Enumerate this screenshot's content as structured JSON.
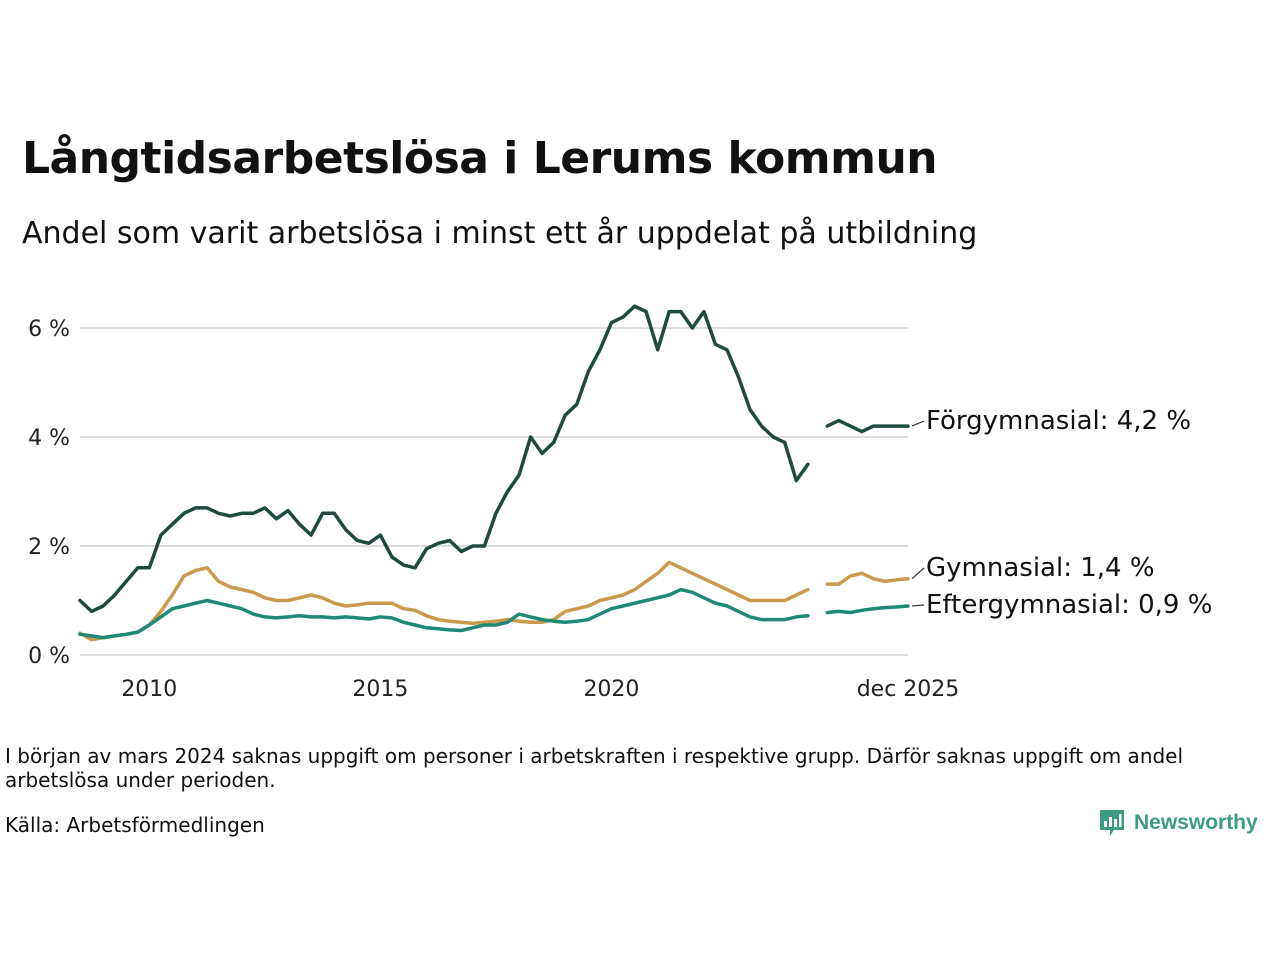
{
  "title": "Långtidsarbetslösa i Lerums kommun",
  "subtitle": "Andel som varit arbetslösa i minst ett år uppdelat på utbildning",
  "note": "I början av mars 2024 saknas uppgift om personer i arbetskraften i respektive grupp. Därför saknas uppgift om andel arbetslösa under perioden.",
  "source": "Källa: Arbetsförmedlingen",
  "logo": {
    "text": "Newsworthy",
    "color": "#3c9b83"
  },
  "chart_data": {
    "type": "line",
    "title": "Långtidsarbetslösa i Lerums kommun",
    "xlabel": "",
    "ylabel": "",
    "xlim": [
      2008.0,
      2025.917
    ],
    "ylim": [
      0,
      6.6
    ],
    "y_ticks": [
      {
        "value": 0,
        "label": "0 %"
      },
      {
        "value": 2,
        "label": "2 %"
      },
      {
        "value": 4,
        "label": "4 %"
      },
      {
        "value": 6,
        "label": "6 %"
      }
    ],
    "x_ticks": [
      {
        "value": 2009.5,
        "label": "2010"
      },
      {
        "value": 2014.5,
        "label": "2015"
      },
      {
        "value": 2019.5,
        "label": "2020"
      },
      {
        "value": 2025.917,
        "label": "dec 2025"
      }
    ],
    "gap": {
      "start": 2023.8,
      "end": 2024.1
    },
    "grid": true,
    "series": [
      {
        "name": "Förgymnasial",
        "label": "Förgymnasial: 4,2 %",
        "color": "#1f4a40",
        "x": [
          2008.0,
          2008.25,
          2008.5,
          2008.75,
          2009.0,
          2009.25,
          2009.5,
          2009.75,
          2010.0,
          2010.25,
          2010.5,
          2010.75,
          2011.0,
          2011.25,
          2011.5,
          2011.75,
          2012.0,
          2012.25,
          2012.5,
          2012.75,
          2013.0,
          2013.25,
          2013.5,
          2013.75,
          2014.0,
          2014.25,
          2014.5,
          2014.75,
          2015.0,
          2015.25,
          2015.5,
          2015.75,
          2016.0,
          2016.25,
          2016.5,
          2016.75,
          2017.0,
          2017.25,
          2017.5,
          2017.75,
          2018.0,
          2018.25,
          2018.5,
          2018.75,
          2019.0,
          2019.25,
          2019.5,
          2019.75,
          2020.0,
          2020.25,
          2020.5,
          2020.75,
          2021.0,
          2021.25,
          2021.5,
          2021.75,
          2022.0,
          2022.25,
          2022.5,
          2022.75,
          2023.0,
          2023.25,
          2023.5,
          2023.75,
          2024.17,
          2024.42,
          2024.67,
          2024.92,
          2025.17,
          2025.42,
          2025.67,
          2025.917
        ],
        "y": [
          1.0,
          0.8,
          0.9,
          1.1,
          1.35,
          1.6,
          1.6,
          2.2,
          2.4,
          2.6,
          2.7,
          2.7,
          2.6,
          2.55,
          2.6,
          2.6,
          2.7,
          2.5,
          2.65,
          2.4,
          2.2,
          2.6,
          2.6,
          2.3,
          2.1,
          2.05,
          2.2,
          1.8,
          1.65,
          1.6,
          1.95,
          2.05,
          2.1,
          1.9,
          2.0,
          2.0,
          2.6,
          3.0,
          3.3,
          4.0,
          3.7,
          3.9,
          4.4,
          4.6,
          5.2,
          5.6,
          6.1,
          6.2,
          6.4,
          6.3,
          5.6,
          6.3,
          6.3,
          6.0,
          6.3,
          5.7,
          5.6,
          5.1,
          4.5,
          4.2,
          4.0,
          3.9,
          3.2,
          3.5,
          4.2,
          4.3,
          4.2,
          4.1,
          4.2,
          4.2,
          4.2,
          4.2
        ]
      },
      {
        "name": "Gymnasial",
        "label": "Gymnasial: 1,4 %",
        "color": "#c99a4b",
        "x": [
          2008.0,
          2008.25,
          2008.5,
          2008.75,
          2009.0,
          2009.25,
          2009.5,
          2009.75,
          2010.0,
          2010.25,
          2010.5,
          2010.75,
          2011.0,
          2011.25,
          2011.5,
          2011.75,
          2012.0,
          2012.25,
          2012.5,
          2012.75,
          2013.0,
          2013.25,
          2013.5,
          2013.75,
          2014.0,
          2014.25,
          2014.5,
          2014.75,
          2015.0,
          2015.25,
          2015.5,
          2015.75,
          2016.0,
          2016.25,
          2016.5,
          2016.75,
          2017.0,
          2017.25,
          2017.5,
          2017.75,
          2018.0,
          2018.25,
          2018.5,
          2018.75,
          2019.0,
          2019.25,
          2019.5,
          2019.75,
          2020.0,
          2020.25,
          2020.5,
          2020.75,
          2021.0,
          2021.25,
          2021.5,
          2021.75,
          2022.0,
          2022.25,
          2022.5,
          2022.75,
          2023.0,
          2023.25,
          2023.5,
          2023.75,
          2024.17,
          2024.42,
          2024.67,
          2024.92,
          2025.17,
          2025.42,
          2025.67,
          2025.917
        ],
        "y": [
          0.4,
          0.28,
          0.32,
          0.35,
          0.38,
          0.42,
          0.55,
          0.8,
          1.1,
          1.45,
          1.55,
          1.6,
          1.35,
          1.25,
          1.2,
          1.15,
          1.05,
          1.0,
          1.0,
          1.05,
          1.1,
          1.05,
          0.95,
          0.9,
          0.92,
          0.95,
          0.95,
          0.95,
          0.85,
          0.82,
          0.72,
          0.65,
          0.62,
          0.6,
          0.58,
          0.6,
          0.62,
          0.65,
          0.62,
          0.6,
          0.6,
          0.65,
          0.8,
          0.85,
          0.9,
          1.0,
          1.05,
          1.1,
          1.2,
          1.35,
          1.5,
          1.7,
          1.6,
          1.5,
          1.4,
          1.3,
          1.2,
          1.1,
          1.0,
          1.0,
          1.0,
          1.0,
          1.1,
          1.2,
          1.3,
          1.3,
          1.45,
          1.5,
          1.4,
          1.35,
          1.38,
          1.4
        ]
      },
      {
        "name": "Eftergymnasial",
        "label": "Eftergymnasial: 0,9 %",
        "color": "#1e8a76",
        "x": [
          2008.0,
          2008.25,
          2008.5,
          2008.75,
          2009.0,
          2009.25,
          2009.5,
          2009.75,
          2010.0,
          2010.25,
          2010.5,
          2010.75,
          2011.0,
          2011.25,
          2011.5,
          2011.75,
          2012.0,
          2012.25,
          2012.5,
          2012.75,
          2013.0,
          2013.25,
          2013.5,
          2013.75,
          2014.0,
          2014.25,
          2014.5,
          2014.75,
          2015.0,
          2015.25,
          2015.5,
          2015.75,
          2016.0,
          2016.25,
          2016.5,
          2016.75,
          2017.0,
          2017.25,
          2017.5,
          2017.75,
          2018.0,
          2018.25,
          2018.5,
          2018.75,
          2019.0,
          2019.25,
          2019.5,
          2019.75,
          2020.0,
          2020.25,
          2020.5,
          2020.75,
          2021.0,
          2021.25,
          2021.5,
          2021.75,
          2022.0,
          2022.25,
          2022.5,
          2022.75,
          2023.0,
          2023.25,
          2023.5,
          2023.75,
          2024.17,
          2024.42,
          2024.67,
          2024.92,
          2025.17,
          2025.42,
          2025.67,
          2025.917
        ],
        "y": [
          0.38,
          0.35,
          0.32,
          0.35,
          0.38,
          0.42,
          0.55,
          0.7,
          0.85,
          0.9,
          0.95,
          1.0,
          0.95,
          0.9,
          0.85,
          0.75,
          0.7,
          0.68,
          0.7,
          0.72,
          0.7,
          0.7,
          0.68,
          0.7,
          0.68,
          0.66,
          0.7,
          0.68,
          0.6,
          0.55,
          0.5,
          0.48,
          0.46,
          0.45,
          0.5,
          0.55,
          0.55,
          0.6,
          0.75,
          0.7,
          0.65,
          0.62,
          0.6,
          0.62,
          0.65,
          0.75,
          0.85,
          0.9,
          0.95,
          1.0,
          1.05,
          1.1,
          1.2,
          1.15,
          1.05,
          0.95,
          0.9,
          0.8,
          0.7,
          0.65,
          0.65,
          0.65,
          0.7,
          0.72,
          0.78,
          0.8,
          0.78,
          0.82,
          0.85,
          0.87,
          0.88,
          0.9
        ]
      }
    ]
  }
}
